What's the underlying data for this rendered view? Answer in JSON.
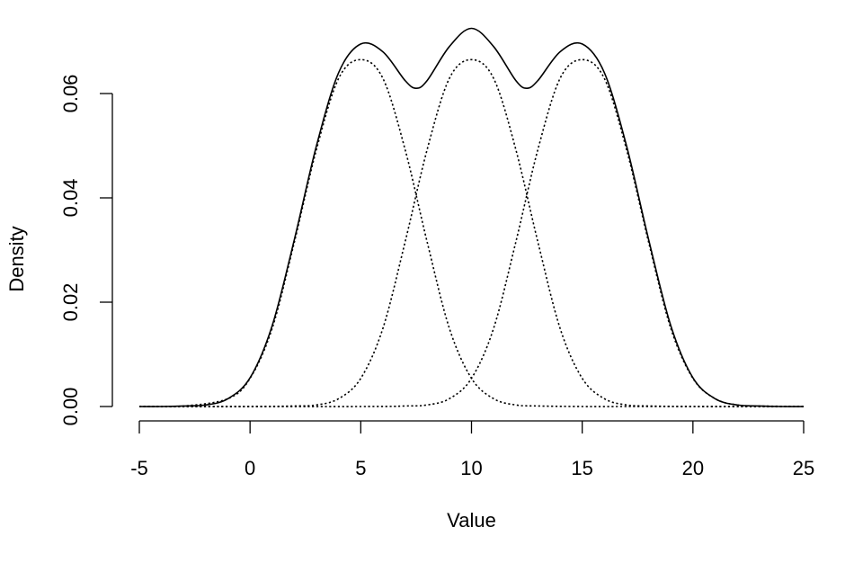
{
  "chart_data": {
    "type": "line",
    "title": "",
    "xlabel": "Value",
    "ylabel": "Density",
    "xlim": [
      -5,
      25
    ],
    "ylim": [
      0,
      0.072
    ],
    "x_ticks": [
      -5,
      0,
      5,
      10,
      15,
      20,
      25
    ],
    "x_tick_labels": [
      "-5",
      "0",
      "5",
      "10",
      "15",
      "20",
      "25"
    ],
    "y_ticks": [
      0,
      0.02,
      0.04,
      0.06
    ],
    "y_tick_labels": [
      "0.00",
      "0.02",
      "0.04",
      "0.06"
    ],
    "grid": false,
    "series": [
      {
        "style": "solid",
        "color": "#000000",
        "x": [
          -5,
          -4,
          -3,
          -2,
          -1,
          0,
          1,
          2,
          3,
          4,
          5,
          6,
          7,
          7.5,
          8,
          9,
          10,
          11,
          12,
          12.5,
          13,
          14,
          15,
          16,
          17,
          18,
          19,
          20,
          21,
          22,
          23,
          24,
          25
        ],
        "y": [
          0.0,
          0.0,
          0.0001,
          0.0003,
          0.0015,
          0.0055,
          0.0155,
          0.032,
          0.05,
          0.064,
          0.0695,
          0.068,
          0.0625,
          0.061,
          0.0625,
          0.069,
          0.0725,
          0.069,
          0.0625,
          0.061,
          0.0625,
          0.068,
          0.0695,
          0.064,
          0.05,
          0.032,
          0.0155,
          0.0055,
          0.0015,
          0.0003,
          0.0001,
          0.0,
          0.0
        ]
      },
      {
        "style": "dotted",
        "color": "#000000",
        "x": [
          -5,
          -3,
          -1,
          0,
          1,
          2,
          3,
          4,
          5,
          6,
          7,
          8,
          9,
          10,
          11,
          12,
          13,
          15,
          17,
          20,
          25
        ],
        "y": [
          0.0,
          0.0001,
          0.0015,
          0.0054,
          0.015,
          0.0315,
          0.0493,
          0.0629,
          0.0665,
          0.0629,
          0.0493,
          0.0315,
          0.015,
          0.0054,
          0.0015,
          0.0003,
          0.0001,
          0.0,
          0.0,
          0.0,
          0.0
        ]
      },
      {
        "style": "dotted",
        "color": "#000000",
        "x": [
          -5,
          0,
          2,
          3,
          4,
          5,
          6,
          7,
          8,
          9,
          10,
          11,
          12,
          13,
          14,
          15,
          16,
          17,
          18,
          20,
          25
        ],
        "y": [
          0.0,
          0.0,
          0.0001,
          0.0003,
          0.0015,
          0.0054,
          0.015,
          0.0315,
          0.0493,
          0.0629,
          0.0665,
          0.0629,
          0.0493,
          0.0315,
          0.015,
          0.0054,
          0.0015,
          0.0003,
          0.0001,
          0.0,
          0.0
        ]
      },
      {
        "style": "dotted",
        "color": "#000000",
        "x": [
          -5,
          5,
          7,
          8,
          9,
          10,
          11,
          12,
          13,
          14,
          15,
          16,
          17,
          18,
          19,
          20,
          21,
          22,
          23,
          25
        ],
        "y": [
          0.0,
          0.0,
          0.0001,
          0.0003,
          0.0015,
          0.0054,
          0.015,
          0.0315,
          0.0493,
          0.0629,
          0.0665,
          0.0629,
          0.0493,
          0.0315,
          0.015,
          0.0054,
          0.0015,
          0.0003,
          0.0001,
          0.0
        ]
      }
    ]
  }
}
